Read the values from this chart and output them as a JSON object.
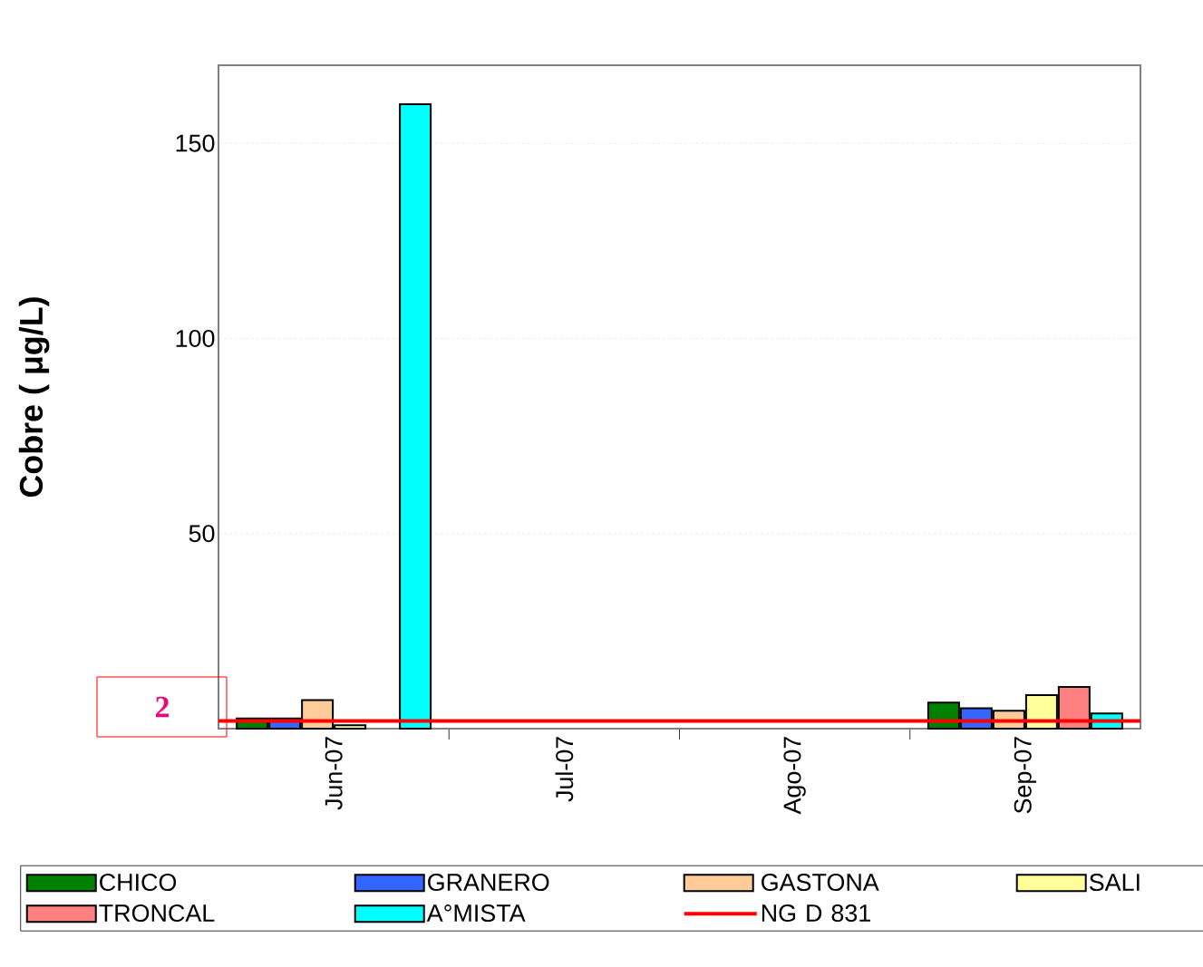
{
  "chart_data": {
    "type": "bar",
    "ylabel": "Cobre ( μg/L)",
    "categories": [
      "Jun-07",
      "Jul-07",
      "Ago-07",
      "Sep-07"
    ],
    "series": [
      {
        "name": "CHICO",
        "color": "#008000",
        "values": [
          2.6,
          null,
          null,
          6.7
        ]
      },
      {
        "name": "GRANERO",
        "color": "#3366ff",
        "values": [
          2.6,
          null,
          null,
          5.2
        ]
      },
      {
        "name": "GASTONA",
        "color": "#ffcc99",
        "values": [
          7.3,
          null,
          null,
          4.6
        ]
      },
      {
        "name": "SALI",
        "color": "#ffff99",
        "values": [
          0.9,
          null,
          null,
          8.6
        ]
      },
      {
        "name": "TRONCAL",
        "color": "#ff8080",
        "values": [
          null,
          null,
          null,
          10.7
        ]
      },
      {
        "name": "A°MISTA",
        "color": "#00ffff",
        "values": [
          160,
          null,
          null,
          3.9
        ]
      }
    ],
    "ylim": [
      0,
      170
    ],
    "yticks": [
      {
        "value": 0,
        "label": null
      },
      50,
      100,
      150
    ],
    "grid": "y",
    "legend": "bottom",
    "ref_lines": [
      {
        "axis": "y",
        "value": 2,
        "label": "NG D 831",
        "color": "#ff0000"
      }
    ],
    "annotations": [
      "2"
    ]
  }
}
